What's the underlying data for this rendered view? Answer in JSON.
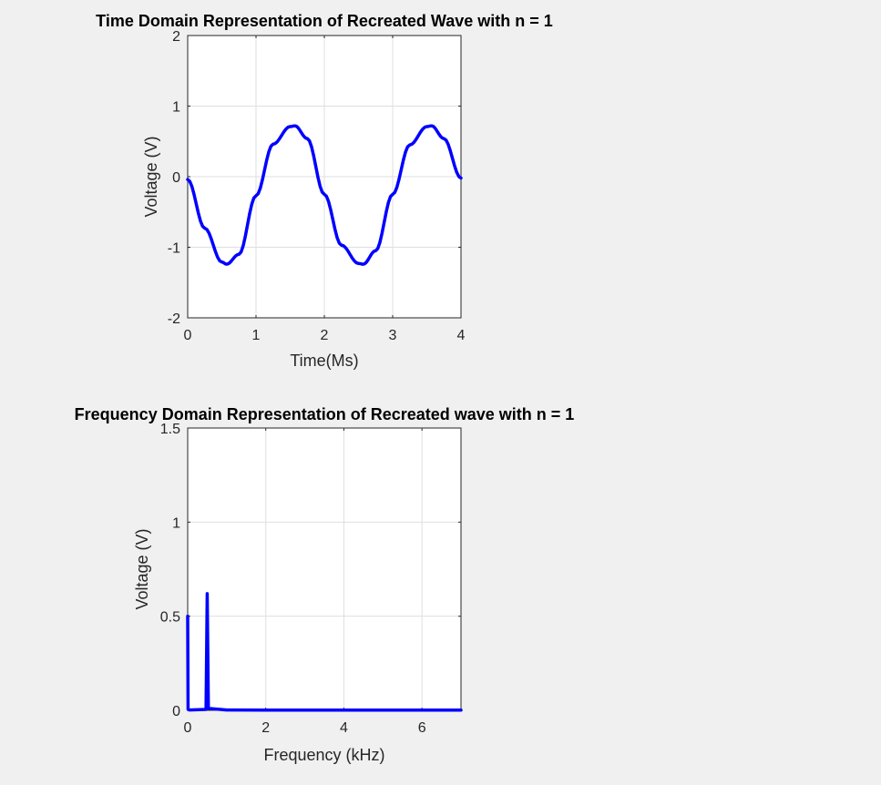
{
  "colors": {
    "background": "#f0f0f0",
    "axes_background": "#ffffff",
    "series": "#0000ff",
    "grid": "#dfdfdf",
    "text": "#262626"
  },
  "chart_data": [
    {
      "type": "line",
      "title": "Time Domain Representation of Recreated Wave with n = 1",
      "xlabel": "Time(Ms)",
      "ylabel": "Voltage (V)",
      "xlim": [
        0,
        4
      ],
      "ylim": [
        -2,
        2
      ],
      "xticks": [
        0,
        1,
        2,
        3,
        4
      ],
      "yticks": [
        -2,
        -1,
        0,
        1,
        2
      ],
      "xtick_labels": [
        "0",
        "1",
        "2",
        "3",
        "4"
      ],
      "ytick_labels": [
        "-2",
        "-1",
        "0",
        "1",
        "2"
      ],
      "grid": true,
      "series": [
        {
          "x": [
            0,
            0.25,
            0.5,
            0.57,
            0.75,
            1.0,
            1.25,
            1.5,
            1.57,
            1.75,
            2.0,
            2.25,
            2.5,
            2.57,
            2.75,
            3.0,
            3.25,
            3.5,
            3.57,
            3.75,
            4.0
          ],
          "y": [
            -0.04,
            -0.73,
            -1.21,
            -1.24,
            -1.1,
            -0.27,
            0.46,
            0.71,
            0.72,
            0.54,
            -0.25,
            -0.97,
            -1.23,
            -1.24,
            -1.05,
            -0.25,
            0.45,
            0.71,
            0.72,
            0.54,
            -0.02
          ]
        }
      ]
    },
    {
      "type": "line",
      "title": "Frequency Domain Representation of Recreated wave with n = 1",
      "xlabel": "Frequency (kHz)",
      "ylabel": "Voltage (V)",
      "xlim": [
        0,
        7
      ],
      "ylim": [
        0,
        1.5
      ],
      "xticks": [
        0,
        2,
        4,
        6
      ],
      "yticks": [
        0,
        0.5,
        1,
        1.5
      ],
      "xtick_labels": [
        "0",
        "2",
        "4",
        "6"
      ],
      "ytick_labels": [
        "0",
        "0.5",
        "1",
        "1.5"
      ],
      "grid": true,
      "series": [
        {
          "x": [
            0,
            0.01,
            0.04,
            0.47,
            0.5,
            0.53,
            1.0,
            2.0,
            4.0,
            6.0,
            7.0
          ],
          "y": [
            0.5,
            0.005,
            0.002,
            0.005,
            0.62,
            0.01,
            0.002,
            0.001,
            0.001,
            0.001,
            0.001
          ]
        }
      ]
    }
  ]
}
